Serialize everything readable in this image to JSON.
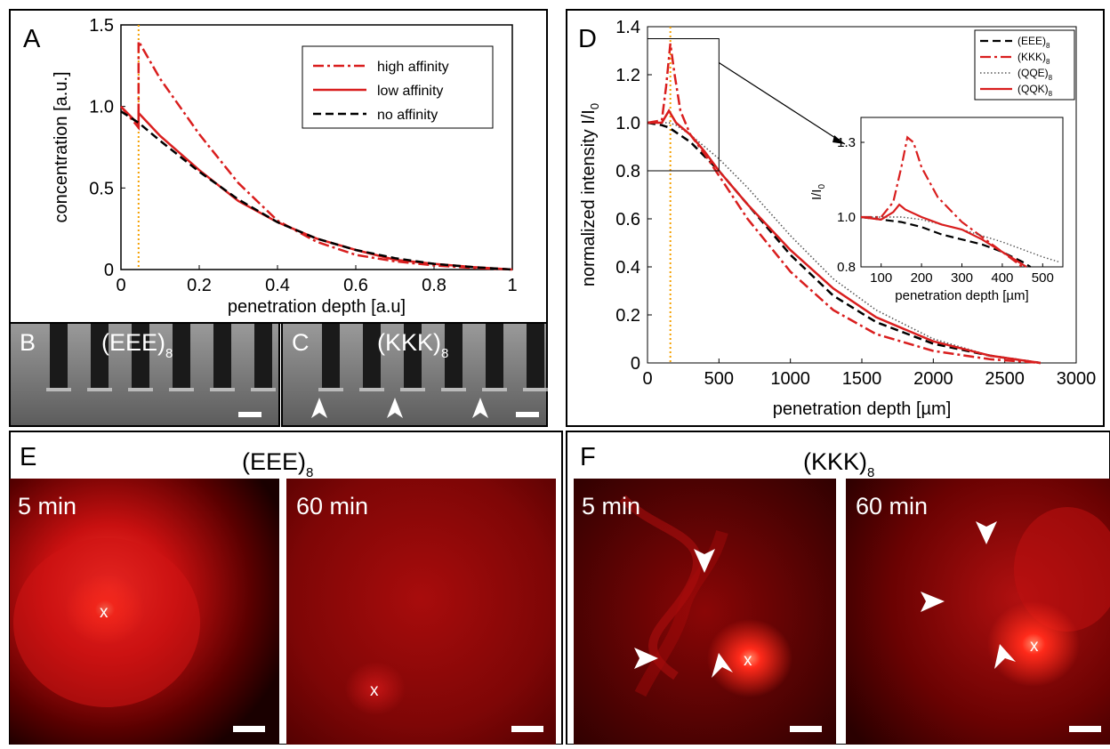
{
  "panels": {
    "A": "A",
    "B": "B",
    "C": "C",
    "D": "D",
    "E": "E",
    "F": "F"
  },
  "labels": {
    "eee_main": "(EEE)",
    "kkk_main": "(KKK)",
    "sub8": "8",
    "min5": "5 min",
    "min60": "60 min",
    "x_mark": "x"
  },
  "colors": {
    "red": "#d91e1e",
    "black": "#000000",
    "orange": "#f5a000",
    "gray": "#555555"
  },
  "chart_data": [
    {
      "panel": "A",
      "type": "line",
      "xlabel": "penetration depth [a.u]",
      "ylabel": "concentration [a.u.]",
      "xlim": [
        0,
        1
      ],
      "ylim": [
        0,
        1.5
      ],
      "xticks": [
        "0",
        "0.2",
        "0.4",
        "0.6",
        "0.8",
        "1"
      ],
      "yticks": [
        "0",
        "0.5",
        "1.0",
        "1.5"
      ],
      "ytick_values": [
        0,
        0.5,
        1.0,
        1.5
      ],
      "legend": "top-right",
      "marker_line_x": 0.045,
      "series": [
        {
          "name": "high affinity",
          "style": "dashdot",
          "x": [
            0,
            0.045,
            0.045,
            0.1,
            0.2,
            0.3,
            0.4,
            0.5,
            0.6,
            0.7,
            0.8,
            0.9,
            1.0
          ],
          "y": [
            1.0,
            0.87,
            1.4,
            1.17,
            0.83,
            0.53,
            0.3,
            0.17,
            0.09,
            0.05,
            0.025,
            0.01,
            0
          ]
        },
        {
          "name": "low affinity",
          "style": "solid",
          "x": [
            0,
            0.045,
            0.045,
            0.1,
            0.2,
            0.3,
            0.4,
            0.5,
            0.6,
            0.7,
            0.8,
            0.9,
            1.0
          ],
          "y": [
            1.0,
            0.89,
            0.96,
            0.82,
            0.61,
            0.42,
            0.29,
            0.19,
            0.12,
            0.06,
            0.035,
            0.015,
            0
          ]
        },
        {
          "name": "no affinity",
          "style": "dashed",
          "x": [
            0,
            0.045,
            0.1,
            0.2,
            0.3,
            0.4,
            0.5,
            0.6,
            0.7,
            0.8,
            0.9,
            1.0
          ],
          "y": [
            0.97,
            0.9,
            0.79,
            0.6,
            0.43,
            0.29,
            0.19,
            0.12,
            0.07,
            0.035,
            0.015,
            0
          ]
        }
      ]
    },
    {
      "panel": "D",
      "type": "line",
      "xlabel": "penetration depth [µm]",
      "ylabel": "normalized intensity I/I",
      "xlim": [
        0,
        3000
      ],
      "ylim": [
        0,
        1.4
      ],
      "xticks": [
        "0",
        "500",
        "1000",
        "1500",
        "2000",
        "2500",
        "3000"
      ],
      "yticks": [
        "0",
        "0.2",
        "0.4",
        "0.6",
        "0.8",
        "1.0",
        "1.2",
        "1.4"
      ],
      "ytick_values": [
        0,
        0.2,
        0.4,
        0.6,
        0.8,
        1.0,
        1.2,
        1.4
      ],
      "legend": "top-right",
      "marker_line_x": 160,
      "series": [
        {
          "name": "(EEE)",
          "style": "dashed",
          "color": "black",
          "x": [
            0,
            100,
            150,
            200,
            300,
            500,
            700,
            1000,
            1300,
            1600,
            2000,
            2400,
            2750
          ],
          "y": [
            1.0,
            0.99,
            0.98,
            0.96,
            0.92,
            0.8,
            0.66,
            0.45,
            0.28,
            0.17,
            0.08,
            0.03,
            0
          ]
        },
        {
          "name": "(KKK)",
          "style": "dashdot",
          "color": "red",
          "x": [
            0,
            100,
            130,
            160,
            190,
            230,
            300,
            400,
            500,
            700,
            1000,
            1300,
            1600,
            2000,
            2400,
            2750
          ],
          "y": [
            1.0,
            1.01,
            1.15,
            1.33,
            1.2,
            1.05,
            0.95,
            0.87,
            0.78,
            0.6,
            0.38,
            0.22,
            0.12,
            0.05,
            0.015,
            0
          ]
        },
        {
          "name": "(QQE)",
          "style": "dotted",
          "color": "gray",
          "x": [
            0,
            100,
            150,
            200,
            300,
            500,
            700,
            1000,
            1300,
            1600,
            2000,
            2400,
            2750
          ],
          "y": [
            1.0,
            1.0,
            1.0,
            0.99,
            0.95,
            0.85,
            0.73,
            0.53,
            0.35,
            0.22,
            0.1,
            0.03,
            0
          ]
        },
        {
          "name": "(QQK)",
          "style": "solid",
          "color": "red",
          "x": [
            0,
            100,
            150,
            200,
            300,
            400,
            500,
            700,
            1000,
            1300,
            1600,
            2000,
            2400,
            2750
          ],
          "y": [
            1.0,
            1.0,
            1.05,
            1.0,
            0.95,
            0.88,
            0.8,
            0.66,
            0.47,
            0.31,
            0.19,
            0.09,
            0.03,
            0
          ]
        }
      ],
      "inset": {
        "xlabel": "penetration depth [µm]",
        "ylabel": "I/I",
        "xlim": [
          50,
          550
        ],
        "ylim": [
          0.8,
          1.4
        ],
        "xticks": [
          "100",
          "200",
          "300",
          "400",
          "500"
        ],
        "yticks": [
          "0.8",
          "1.0",
          "1.3"
        ],
        "ytick_values": [
          0.8,
          1.0,
          1.3
        ],
        "series": [
          {
            "name": "(EEE)",
            "style": "dashed",
            "color": "black",
            "x": [
              50,
              100,
              150,
              200,
              250,
              300,
              350,
              400,
              450,
              470
            ],
            "y": [
              1.0,
              0.99,
              0.98,
              0.96,
              0.93,
              0.91,
              0.89,
              0.86,
              0.82,
              0.8
            ]
          },
          {
            "name": "(KKK)",
            "style": "dashdot",
            "color": "red",
            "x": [
              50,
              100,
              130,
              150,
              165,
              180,
              200,
              240,
              300,
              350,
              400,
              450
            ],
            "y": [
              1.0,
              1.0,
              1.06,
              1.2,
              1.32,
              1.3,
              1.2,
              1.08,
              0.98,
              0.92,
              0.86,
              0.8
            ]
          },
          {
            "name": "(QQE)",
            "style": "dotted",
            "color": "gray",
            "x": [
              50,
              100,
              150,
              200,
              250,
              300,
              400,
              500,
              540
            ],
            "y": [
              1.0,
              1.0,
              1.0,
              0.99,
              0.97,
              0.95,
              0.9,
              0.84,
              0.82
            ]
          },
          {
            "name": "(QQK)",
            "style": "solid",
            "color": "red",
            "x": [
              50,
              100,
              130,
              145,
              160,
              200,
              250,
              300,
              350,
              400,
              440,
              460
            ],
            "y": [
              1.0,
              0.99,
              1.02,
              1.05,
              1.03,
              1.0,
              0.97,
              0.95,
              0.91,
              0.86,
              0.82,
              0.8
            ]
          }
        ]
      }
    }
  ]
}
